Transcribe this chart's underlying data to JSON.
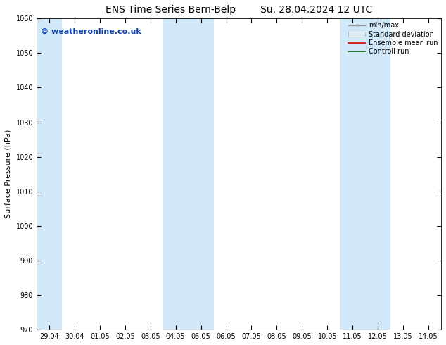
{
  "title": "ENS Time Series Bern-Belp        Su. 28.04.2024 12 UTC",
  "ylabel": "Surface Pressure (hPa)",
  "ylim": [
    970,
    1060
  ],
  "yticks": [
    970,
    980,
    990,
    1000,
    1010,
    1020,
    1030,
    1040,
    1050,
    1060
  ],
  "x_tick_labels": [
    "29.04",
    "30.04",
    "01.05",
    "02.05",
    "03.05",
    "04.05",
    "05.05",
    "06.05",
    "07.05",
    "08.05",
    "09.05",
    "10.05",
    "11.05",
    "12.05",
    "13.05",
    "14.05"
  ],
  "x_tick_positions": [
    0,
    1,
    2,
    3,
    4,
    5,
    6,
    7,
    8,
    9,
    10,
    11,
    12,
    13,
    14,
    15
  ],
  "xlim": [
    -0.5,
    15.5
  ],
  "shaded_bands": [
    {
      "xmin": -0.5,
      "xmax": 0.5
    },
    {
      "xmin": 4.5,
      "xmax": 6.5
    },
    {
      "xmin": 11.5,
      "xmax": 13.5
    }
  ],
  "band_color": "#d0e8f8",
  "background_color": "#ffffff",
  "watermark_text": "© weatheronline.co.uk",
  "watermark_color": "#1144aa",
  "legend_labels": [
    "min/max",
    "Standard deviation",
    "Ensemble mean run",
    "Controll run"
  ],
  "legend_colors_line": [
    "#999999",
    "#bbbbbb",
    "#cc0000",
    "#006600"
  ],
  "title_fontsize": 10,
  "label_fontsize": 8,
  "tick_fontsize": 7,
  "watermark_fontsize": 8,
  "legend_fontsize": 7
}
